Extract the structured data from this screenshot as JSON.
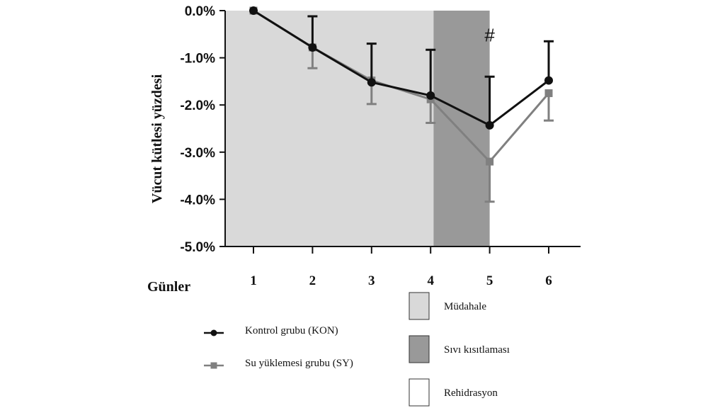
{
  "chart_data": {
    "type": "line",
    "title": "",
    "xlabel": "Günler",
    "ylabel": "Vücut kütlesi  yüzdesi",
    "x": [
      1,
      2,
      3,
      4,
      5,
      6
    ],
    "x_tick_labels": [
      "1",
      "2",
      "3",
      "4",
      "5",
      "6"
    ],
    "y_tick_labels": [
      "0.0%",
      "-1.0%",
      "-2.0%",
      "-3.0%",
      "-4.0%",
      "-5.0%"
    ],
    "ylim": [
      -5.0,
      0.0
    ],
    "grid": false,
    "series": [
      {
        "name": "Kontrol grubu (KON)",
        "marker": "circle",
        "color": "#111111",
        "values": [
          0.0,
          -0.78,
          -1.52,
          -1.8,
          -2.43,
          -1.48
        ],
        "error_upper": [
          0.0,
          0.66,
          0.82,
          0.97,
          1.03,
          0.83
        ],
        "error_lower": [
          0.0,
          0.0,
          0.0,
          0.0,
          0.0,
          0.0
        ]
      },
      {
        "name": "Su yüklemesi grubu (SY)",
        "marker": "square",
        "color": "#808080",
        "values": [
          0.0,
          -0.78,
          -1.48,
          -1.88,
          -3.2,
          -1.75
        ],
        "error_upper": [
          0.0,
          0.0,
          0.0,
          0.0,
          0.0,
          0.0
        ],
        "error_lower": [
          0.0,
          0.44,
          0.5,
          0.5,
          0.85,
          0.58
        ]
      }
    ],
    "phases": [
      {
        "label": "Müdahale",
        "from": 0.5,
        "to": 4.05,
        "color": "#d9d9d9"
      },
      {
        "label": "Sıvı kısıtlaması",
        "from": 4.05,
        "to": 5.0,
        "color": "#999999"
      },
      {
        "label": "Rehidrasyon",
        "from": 5.0,
        "to": 6.5,
        "color": "#ffffff"
      }
    ],
    "annotations": [
      {
        "text": "#",
        "x": 5,
        "y": -0.65
      }
    ],
    "legend_position": "bottom"
  }
}
